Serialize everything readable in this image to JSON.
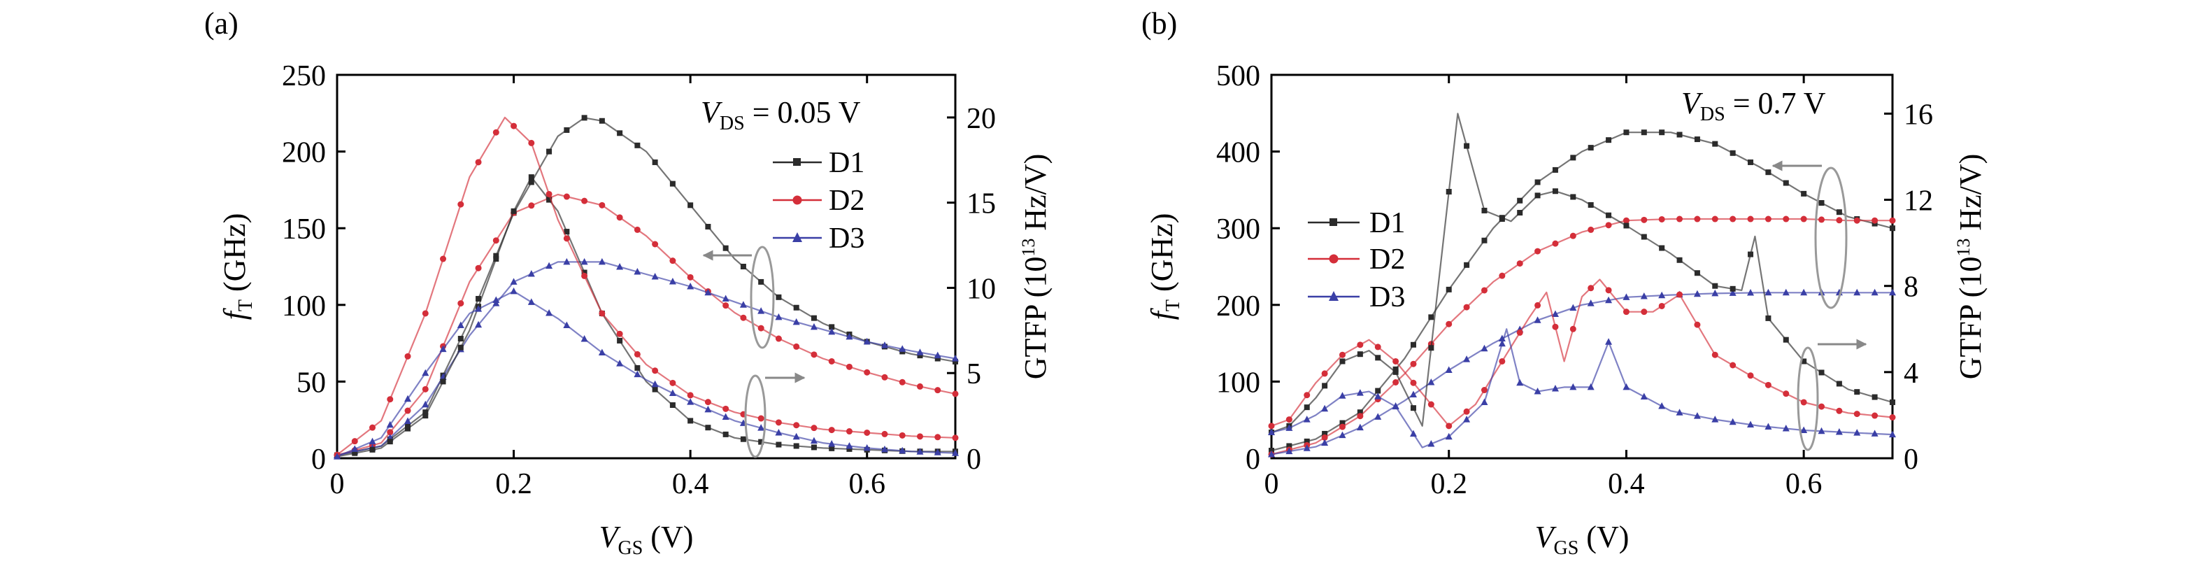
{
  "figure": {
    "panel_labels": [
      "(a)",
      "(b)"
    ]
  },
  "colors": {
    "D1": "#2b2b2b",
    "D2": "#d42e39",
    "D3": "#3a3fa6",
    "arrow": "#999999"
  },
  "chart_data": [
    {
      "type": "line",
      "panel": "(a)",
      "annotation": {
        "var": "V",
        "sub": "DS",
        "text": " = 0.05 V"
      },
      "xlabel": {
        "var": "V",
        "sub": "GS",
        "unit": " (V)"
      },
      "ylabel_left": {
        "var": "f",
        "sub": "T",
        "unit": " (GHz)"
      },
      "ylabel_right": {
        "pre": "GTFP (10",
        "sup": "13",
        "post": " Hz/V)"
      },
      "xlim": [
        0,
        0.7
      ],
      "ylim_left": [
        0,
        250
      ],
      "ylim_right": [
        0,
        22.5
      ],
      "xticks": [
        "0",
        "0.2",
        "0.4",
        "0.6"
      ],
      "yticks_left": [
        "0",
        "50",
        "100",
        "150",
        "200",
        "250"
      ],
      "yticks_right": [
        "0",
        "5",
        "10",
        "15",
        "20"
      ],
      "legend": [
        "D1",
        "D2",
        "D3"
      ],
      "series": [
        {
          "name": "D1",
          "axis": "left",
          "color": "#2b2b2b",
          "x": [
            0,
            0.05,
            0.1,
            0.15,
            0.2,
            0.25,
            0.28,
            0.3,
            0.35,
            0.4,
            0.45,
            0.5,
            0.55,
            0.6,
            0.65,
            0.7
          ],
          "y": [
            2,
            8,
            30,
            90,
            160,
            210,
            222,
            220,
            200,
            165,
            130,
            105,
            88,
            76,
            68,
            63
          ]
        },
        {
          "name": "D2",
          "axis": "left",
          "color": "#d42e39",
          "x": [
            0,
            0.05,
            0.1,
            0.15,
            0.2,
            0.25,
            0.3,
            0.35,
            0.4,
            0.45,
            0.5,
            0.55,
            0.6,
            0.65,
            0.7
          ],
          "y": [
            2,
            10,
            45,
            115,
            160,
            172,
            165,
            145,
            118,
            95,
            78,
            65,
            56,
            48,
            42
          ]
        },
        {
          "name": "D3",
          "axis": "left",
          "color": "#3a3fa6",
          "x": [
            0,
            0.05,
            0.1,
            0.15,
            0.2,
            0.25,
            0.3,
            0.35,
            0.4,
            0.45,
            0.5,
            0.55,
            0.6,
            0.65,
            0.7
          ],
          "y": [
            2,
            8,
            35,
            80,
            115,
            128,
            128,
            120,
            112,
            102,
            92,
            84,
            76,
            70,
            65
          ]
        },
        {
          "name": "D1",
          "axis": "right",
          "color": "#2b2b2b",
          "x": [
            0,
            0.05,
            0.1,
            0.15,
            0.2,
            0.22,
            0.25,
            0.3,
            0.35,
            0.4,
            0.45,
            0.5,
            0.55,
            0.6,
            0.65,
            0.7
          ],
          "y": [
            0.1,
            0.6,
            2.5,
            7.5,
            14.5,
            16.5,
            14.5,
            8.5,
            4.5,
            2.2,
            1.2,
            0.8,
            0.6,
            0.5,
            0.4,
            0.4
          ]
        },
        {
          "name": "D2",
          "axis": "right",
          "color": "#d42e39",
          "x": [
            0,
            0.05,
            0.1,
            0.15,
            0.19,
            0.22,
            0.25,
            0.3,
            0.35,
            0.4,
            0.45,
            0.5,
            0.55,
            0.6,
            0.65,
            0.7
          ],
          "y": [
            0.2,
            2.2,
            8.5,
            16.5,
            20.0,
            18.5,
            14.0,
            8.5,
            5.5,
            3.7,
            2.7,
            2.1,
            1.7,
            1.5,
            1.3,
            1.2
          ]
        },
        {
          "name": "D3",
          "axis": "right",
          "color": "#3a3fa6",
          "x": [
            0,
            0.05,
            0.1,
            0.15,
            0.2,
            0.25,
            0.3,
            0.35,
            0.4,
            0.45,
            0.5,
            0.55,
            0.6,
            0.65,
            0.7
          ],
          "y": [
            0.1,
            1.2,
            5.0,
            8.5,
            9.8,
            8.2,
            6.2,
            4.6,
            3.3,
            2.2,
            1.5,
            0.9,
            0.6,
            0.4,
            0.3
          ]
        }
      ]
    },
    {
      "type": "line",
      "panel": "(b)",
      "annotation": {
        "var": "V",
        "sub": "DS",
        "text": " = 0.7 V"
      },
      "xlabel": {
        "var": "V",
        "sub": "GS",
        "unit": " (V)"
      },
      "ylabel_left": {
        "var": "f",
        "sub": "T",
        "unit": " (GHz)"
      },
      "ylabel_right": {
        "pre": "GTFP (10",
        "sup": "13",
        "post": " Hz/V)"
      },
      "xlim": [
        0,
        0.7
      ],
      "ylim_left": [
        0,
        500
      ],
      "ylim_right": [
        0,
        17.8
      ],
      "xticks": [
        "0",
        "0.2",
        "0.4",
        "0.6"
      ],
      "yticks_left": [
        "0",
        "100",
        "200",
        "300",
        "400",
        "500"
      ],
      "yticks_right": [
        "0",
        "4",
        "8",
        "12",
        "16"
      ],
      "legend": [
        "D1",
        "D2",
        "D3"
      ],
      "series": [
        {
          "name": "D1",
          "axis": "left",
          "color": "#2b2b2b",
          "x": [
            0,
            0.05,
            0.1,
            0.15,
            0.2,
            0.25,
            0.3,
            0.35,
            0.4,
            0.45,
            0.5,
            0.55,
            0.6,
            0.65,
            0.7
          ],
          "y": [
            10,
            25,
            60,
            130,
            220,
            300,
            360,
            400,
            425,
            425,
            410,
            380,
            345,
            315,
            300
          ]
        },
        {
          "name": "D2",
          "axis": "left",
          "color": "#d42e39",
          "x": [
            0,
            0.05,
            0.1,
            0.15,
            0.2,
            0.25,
            0.3,
            0.35,
            0.4,
            0.45,
            0.5,
            0.55,
            0.6,
            0.65,
            0.7
          ],
          "y": [
            5,
            20,
            55,
            110,
            175,
            230,
            270,
            295,
            310,
            312,
            312,
            312,
            312,
            310,
            310
          ]
        },
        {
          "name": "D3",
          "axis": "left",
          "color": "#3a3fa6",
          "x": [
            0,
            0.05,
            0.1,
            0.15,
            0.2,
            0.25,
            0.3,
            0.35,
            0.4,
            0.45,
            0.5,
            0.55,
            0.6,
            0.65,
            0.7
          ],
          "y": [
            5,
            15,
            40,
            75,
            115,
            150,
            180,
            200,
            210,
            213,
            215,
            216,
            216,
            216,
            216
          ]
        },
        {
          "name": "D1",
          "axis": "right",
          "color": "#2b2b2b",
          "x": [
            0,
            0.02,
            0.05,
            0.08,
            0.11,
            0.14,
            0.17,
            0.21,
            0.24,
            0.27,
            0.3,
            0.32,
            0.35,
            0.4,
            0.45,
            0.5,
            0.53,
            0.545,
            0.56,
            0.6,
            0.65,
            0.7
          ],
          "y": [
            1.2,
            1.5,
            2.8,
            4.5,
            5.0,
            4.0,
            1.5,
            16.0,
            11.5,
            11.0,
            12.2,
            12.4,
            12.0,
            10.8,
            9.5,
            8.0,
            7.8,
            10.3,
            6.5,
            4.5,
            3.2,
            2.6
          ]
        },
        {
          "name": "D2",
          "axis": "right",
          "color": "#d42e39",
          "x": [
            0,
            0.02,
            0.05,
            0.08,
            0.11,
            0.14,
            0.17,
            0.2,
            0.23,
            0.26,
            0.29,
            0.31,
            0.33,
            0.35,
            0.37,
            0.4,
            0.43,
            0.46,
            0.5,
            0.55,
            0.6,
            0.65,
            0.7
          ],
          "y": [
            1.5,
            1.8,
            3.5,
            4.8,
            5.5,
            4.5,
            3.0,
            1.5,
            2.5,
            4.5,
            6.5,
            7.7,
            4.5,
            7.5,
            8.3,
            6.8,
            6.8,
            7.6,
            4.8,
            3.6,
            2.6,
            2.1,
            1.9
          ]
        },
        {
          "name": "D3",
          "axis": "right",
          "color": "#3a3fa6",
          "x": [
            0,
            0.02,
            0.05,
            0.08,
            0.11,
            0.14,
            0.17,
            0.2,
            0.24,
            0.265,
            0.28,
            0.3,
            0.33,
            0.36,
            0.38,
            0.4,
            0.45,
            0.5,
            0.55,
            0.6,
            0.65,
            0.7
          ],
          "y": [
            1.2,
            1.4,
            2.0,
            2.9,
            3.1,
            2.4,
            0.5,
            1.0,
            2.6,
            6.0,
            3.5,
            3.1,
            3.3,
            3.3,
            5.4,
            3.3,
            2.2,
            1.8,
            1.5,
            1.3,
            1.2,
            1.1
          ]
        }
      ]
    }
  ]
}
